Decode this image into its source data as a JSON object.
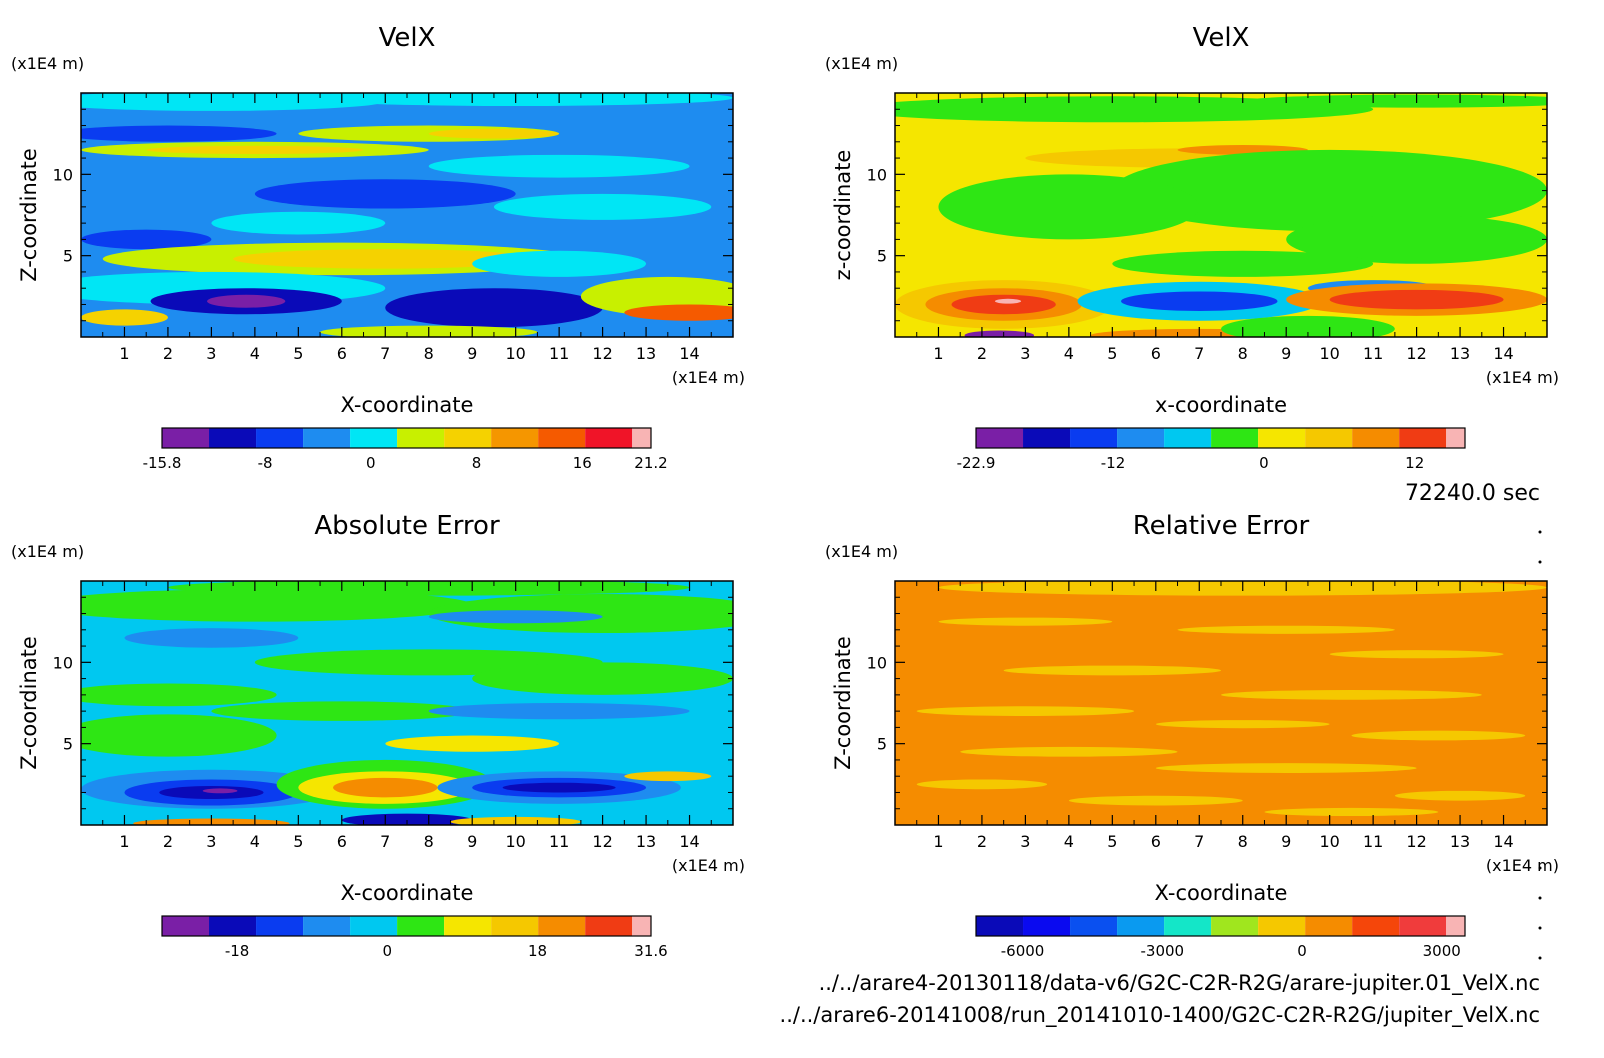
{
  "chart_data": [
    {
      "type": "heatmap",
      "title": "VelX",
      "xlabel": "X-coordinate",
      "ylabel": "Z-coordinate",
      "x_unit": "(x1E4 m)",
      "y_unit": "(x1E4 m)",
      "xlim": [
        0,
        15
      ],
      "ylim": [
        0,
        15
      ],
      "x_ticks": [
        "1",
        "2",
        "3",
        "4",
        "5",
        "6",
        "7",
        "8",
        "9",
        "10",
        "11",
        "12",
        "13",
        "14"
      ],
      "y_ticks": [
        "5",
        "10"
      ],
      "colorbar": {
        "range": [
          -15.8,
          21.2
        ],
        "labels": [
          {
            "text": "-15.8",
            "value": -15.8
          },
          {
            "text": "-8",
            "value": -8
          },
          {
            "text": "0",
            "value": 0
          },
          {
            "text": "8",
            "value": 8
          },
          {
            "text": "16",
            "value": 16
          },
          {
            "text": "21.2",
            "value": 21.2
          }
        ],
        "colors": [
          "#7a1fa6",
          "#0a0ab8",
          "#0a3cf0",
          "#1e8cf0",
          "#00e6f5",
          "#c8f000",
          "#f5d200",
          "#f59600",
          "#f55a00",
          "#f01428",
          "#f8b4b4"
        ]
      },
      "field": {
        "background": 3,
        "blobs": [
          {
            "x": 3,
            "z": 14.5,
            "rx": 4,
            "rz": 0.6,
            "c": 4
          },
          {
            "x": 10,
            "z": 14.7,
            "rx": 5,
            "rz": 0.5,
            "c": 4
          },
          {
            "x": 2,
            "z": 12.5,
            "rx": 2.5,
            "rz": 0.5,
            "c": 2
          },
          {
            "x": 8,
            "z": 12.5,
            "rx": 3,
            "rz": 0.5,
            "c": 5
          },
          {
            "x": 9.5,
            "z": 12.5,
            "rx": 1.5,
            "rz": 0.3,
            "c": 6
          },
          {
            "x": 4,
            "z": 11.5,
            "rx": 4,
            "rz": 0.5,
            "c": 5
          },
          {
            "x": 4,
            "z": 11.5,
            "rx": 2.5,
            "rz": 0.25,
            "c": 6
          },
          {
            "x": 11,
            "z": 10.5,
            "rx": 3,
            "rz": 0.7,
            "c": 4
          },
          {
            "x": 7,
            "z": 8.8,
            "rx": 3,
            "rz": 0.9,
            "c": 2
          },
          {
            "x": 5,
            "z": 7,
            "rx": 2,
            "rz": 0.7,
            "c": 4
          },
          {
            "x": 12,
            "z": 8,
            "rx": 2.5,
            "rz": 0.8,
            "c": 4
          },
          {
            "x": 1.5,
            "z": 6,
            "rx": 1.5,
            "rz": 0.6,
            "c": 2
          },
          {
            "x": 6,
            "z": 4.8,
            "rx": 5.5,
            "rz": 1,
            "c": 5
          },
          {
            "x": 7,
            "z": 4.8,
            "rx": 3.5,
            "rz": 0.6,
            "c": 6
          },
          {
            "x": 11,
            "z": 4.5,
            "rx": 2,
            "rz": 0.8,
            "c": 4
          },
          {
            "x": 3,
            "z": 3,
            "rx": 4,
            "rz": 1,
            "c": 4
          },
          {
            "x": 3.8,
            "z": 2.2,
            "rx": 2.2,
            "rz": 0.8,
            "c": 1
          },
          {
            "x": 3.8,
            "z": 2.2,
            "rx": 0.9,
            "rz": 0.4,
            "c": 0
          },
          {
            "x": 9.5,
            "z": 1.8,
            "rx": 2.5,
            "rz": 1.2,
            "c": 1
          },
          {
            "x": 13.5,
            "z": 2.5,
            "rx": 2,
            "rz": 1.2,
            "c": 5
          },
          {
            "x": 14,
            "z": 1.5,
            "rx": 1.5,
            "rz": 0.5,
            "c": 8
          },
          {
            "x": 8,
            "z": 0.3,
            "rx": 2.5,
            "rz": 0.4,
            "c": 5
          },
          {
            "x": 1,
            "z": 1.2,
            "rx": 1,
            "rz": 0.5,
            "c": 6
          }
        ]
      }
    },
    {
      "type": "heatmap",
      "title": "VelX",
      "xlabel": "x-coordinate",
      "ylabel": "z-coordinate",
      "x_unit": "(x1E4 m)",
      "y_unit": "(x1E4 m)",
      "xlim": [
        0,
        15
      ],
      "ylim": [
        0,
        15
      ],
      "x_ticks": [
        "1",
        "2",
        "3",
        "4",
        "5",
        "6",
        "7",
        "8",
        "9",
        "10",
        "11",
        "12",
        "13",
        "14"
      ],
      "y_ticks": [
        "5",
        "10"
      ],
      "colorbar": {
        "range": [
          -22.9,
          16
        ],
        "labels": [
          {
            "text": "-22.9",
            "value": -22.9
          },
          {
            "text": "-12",
            "value": -12
          },
          {
            "text": "0",
            "value": 0
          },
          {
            "text": "12",
            "value": 12
          }
        ],
        "colors": [
          "#7a1fa6",
          "#0a0ab8",
          "#0a3cf0",
          "#1e8cf0",
          "#00c8f0",
          "#2ee614",
          "#f5e600",
          "#f5c800",
          "#f58c00",
          "#f03c14",
          "#f8b4b4"
        ]
      },
      "field": {
        "background": 6,
        "blobs": [
          {
            "x": 5,
            "z": 14,
            "rx": 6,
            "rz": 0.8,
            "c": 5
          },
          {
            "x": 12,
            "z": 14.5,
            "rx": 4,
            "rz": 0.4,
            "c": 5
          },
          {
            "x": 7,
            "z": 11,
            "rx": 4,
            "rz": 0.6,
            "c": 7
          },
          {
            "x": 8,
            "z": 11.5,
            "rx": 1.5,
            "rz": 0.3,
            "c": 8
          },
          {
            "x": 10,
            "z": 9,
            "rx": 5,
            "rz": 2.5,
            "c": 5
          },
          {
            "x": 4,
            "z": 8,
            "rx": 3,
            "rz": 2,
            "c": 5
          },
          {
            "x": 12,
            "z": 6,
            "rx": 3,
            "rz": 1.5,
            "c": 5
          },
          {
            "x": 8,
            "z": 4.5,
            "rx": 3,
            "rz": 0.8,
            "c": 5
          },
          {
            "x": 11,
            "z": 3,
            "rx": 1.5,
            "rz": 0.5,
            "c": 3
          },
          {
            "x": 2.5,
            "z": 2,
            "rx": 2.5,
            "rz": 1.5,
            "c": 7
          },
          {
            "x": 2.5,
            "z": 2,
            "rx": 1.8,
            "rz": 1,
            "c": 8
          },
          {
            "x": 2.5,
            "z": 2,
            "rx": 1.2,
            "rz": 0.6,
            "c": 9
          },
          {
            "x": 2.6,
            "z": 2.2,
            "rx": 0.3,
            "rz": 0.15,
            "c": 10
          },
          {
            "x": 2.4,
            "z": 0.1,
            "rx": 0.8,
            "rz": 0.3,
            "c": 0
          },
          {
            "x": 7,
            "z": 2.2,
            "rx": 2.8,
            "rz": 1.2,
            "c": 4
          },
          {
            "x": 7,
            "z": 2.2,
            "rx": 1.8,
            "rz": 0.6,
            "c": 2
          },
          {
            "x": 7,
            "z": 0.1,
            "rx": 2.5,
            "rz": 0.4,
            "c": 8
          },
          {
            "x": 12,
            "z": 2.3,
            "rx": 3,
            "rz": 1,
            "c": 8
          },
          {
            "x": 12,
            "z": 2.3,
            "rx": 2,
            "rz": 0.6,
            "c": 9
          },
          {
            "x": 9.5,
            "z": 0.5,
            "rx": 2,
            "rz": 0.8,
            "c": 5
          }
        ]
      }
    },
    {
      "type": "heatmap",
      "title": "Absolute Error",
      "xlabel": "X-coordinate",
      "ylabel": "Z-coordinate",
      "x_unit": "(x1E4 m)",
      "y_unit": "(x1E4 m)",
      "xlim": [
        0,
        15
      ],
      "ylim": [
        0,
        15
      ],
      "x_ticks": [
        "1",
        "2",
        "3",
        "4",
        "5",
        "6",
        "7",
        "8",
        "9",
        "10",
        "11",
        "12",
        "13",
        "14"
      ],
      "y_ticks": [
        "5",
        "10"
      ],
      "colorbar": {
        "range": [
          -27,
          31.6
        ],
        "labels": [
          {
            "text": "-18",
            "value": -18
          },
          {
            "text": "0",
            "value": 0
          },
          {
            "text": "18",
            "value": 18
          },
          {
            "text": "31.6",
            "value": 31.6
          }
        ],
        "colors": [
          "#7a1fa6",
          "#0a0ab8",
          "#0a3cf0",
          "#1e8cf0",
          "#00c8f0",
          "#2ee614",
          "#f5e600",
          "#f5c800",
          "#f58c00",
          "#f03c14",
          "#f8b4b4"
        ]
      },
      "field": {
        "background": 4,
        "blobs": [
          {
            "x": 4,
            "z": 13.5,
            "rx": 5,
            "rz": 1,
            "c": 5
          },
          {
            "x": 12,
            "z": 13,
            "rx": 4,
            "rz": 1.2,
            "c": 5
          },
          {
            "x": 8,
            "z": 14.6,
            "rx": 6,
            "rz": 0.5,
            "c": 5
          },
          {
            "x": 10,
            "z": 12.8,
            "rx": 2,
            "rz": 0.4,
            "c": 3
          },
          {
            "x": 3,
            "z": 11.5,
            "rx": 2,
            "rz": 0.6,
            "c": 3
          },
          {
            "x": 8,
            "z": 10,
            "rx": 4,
            "rz": 0.8,
            "c": 5
          },
          {
            "x": 12,
            "z": 9,
            "rx": 3,
            "rz": 1,
            "c": 5
          },
          {
            "x": 2,
            "z": 8,
            "rx": 2.5,
            "rz": 0.7,
            "c": 5
          },
          {
            "x": 6,
            "z": 7,
            "rx": 3,
            "rz": 0.6,
            "c": 5
          },
          {
            "x": 11,
            "z": 7,
            "rx": 3,
            "rz": 0.5,
            "c": 3
          },
          {
            "x": 2,
            "z": 5.5,
            "rx": 2.5,
            "rz": 1.3,
            "c": 5
          },
          {
            "x": 9,
            "z": 5,
            "rx": 2,
            "rz": 0.5,
            "c": 6
          },
          {
            "x": 3,
            "z": 2.2,
            "rx": 3,
            "rz": 1.2,
            "c": 3
          },
          {
            "x": 3,
            "z": 2,
            "rx": 2,
            "rz": 0.8,
            "c": 2
          },
          {
            "x": 3,
            "z": 2,
            "rx": 1.2,
            "rz": 0.4,
            "c": 1
          },
          {
            "x": 3.2,
            "z": 2.1,
            "rx": 0.4,
            "rz": 0.15,
            "c": 0
          },
          {
            "x": 3,
            "z": 0.1,
            "rx": 1.8,
            "rz": 0.3,
            "c": 8
          },
          {
            "x": 7,
            "z": 2.5,
            "rx": 2.5,
            "rz": 1.5,
            "c": 5
          },
          {
            "x": 7,
            "z": 2.3,
            "rx": 2,
            "rz": 1,
            "c": 6
          },
          {
            "x": 7,
            "z": 2.3,
            "rx": 1.2,
            "rz": 0.6,
            "c": 8
          },
          {
            "x": 7.5,
            "z": 0.3,
            "rx": 1.5,
            "rz": 0.4,
            "c": 1
          },
          {
            "x": 11,
            "z": 2.3,
            "rx": 2.8,
            "rz": 1,
            "c": 3
          },
          {
            "x": 11,
            "z": 2.3,
            "rx": 2,
            "rz": 0.6,
            "c": 2
          },
          {
            "x": 11,
            "z": 2.3,
            "rx": 1.3,
            "rz": 0.3,
            "c": 1
          },
          {
            "x": 13.5,
            "z": 3,
            "rx": 1,
            "rz": 0.3,
            "c": 7
          },
          {
            "x": 10,
            "z": 0.2,
            "rx": 1.5,
            "rz": 0.3,
            "c": 7
          }
        ]
      }
    },
    {
      "type": "heatmap",
      "title": "Relative Error",
      "xlabel": "X-coordinate",
      "ylabel": "Z-coordinate",
      "x_unit": "(x1E4 m)",
      "y_unit": "(x1E4 m)",
      "xlim": [
        0,
        15
      ],
      "ylim": [
        0,
        15
      ],
      "x_ticks": [
        "1",
        "2",
        "3",
        "4",
        "5",
        "6",
        "7",
        "8",
        "9",
        "10",
        "11",
        "12",
        "13",
        "14"
      ],
      "y_ticks": [
        "5",
        "10"
      ],
      "colorbar": {
        "range": [
          -7000,
          3500
        ],
        "labels": [
          {
            "text": "-6000",
            "value": -6000
          },
          {
            "text": "-3000",
            "value": -3000
          },
          {
            "text": "0",
            "value": 0
          },
          {
            "text": "3000",
            "value": 3000
          }
        ],
        "colors": [
          "#0a0ab8",
          "#0a0af0",
          "#0a50f0",
          "#0a9af0",
          "#14e6c8",
          "#a0e61e",
          "#f5c800",
          "#f58c00",
          "#f5460a",
          "#f03c3c",
          "#f8b4b4"
        ]
      },
      "field": {
        "background": 7,
        "blobs": [
          {
            "x": 8,
            "z": 14.6,
            "rx": 7,
            "rz": 0.5,
            "c": 6
          },
          {
            "x": 3,
            "z": 12.5,
            "rx": 2,
            "rz": 0.25,
            "c": 6
          },
          {
            "x": 9,
            "z": 12,
            "rx": 2.5,
            "rz": 0.25,
            "c": 6
          },
          {
            "x": 12,
            "z": 10.5,
            "rx": 2,
            "rz": 0.25,
            "c": 6
          },
          {
            "x": 5,
            "z": 9.5,
            "rx": 2.5,
            "rz": 0.3,
            "c": 6
          },
          {
            "x": 10.5,
            "z": 8,
            "rx": 3,
            "rz": 0.3,
            "c": 6
          },
          {
            "x": 3,
            "z": 7,
            "rx": 2.5,
            "rz": 0.3,
            "c": 6
          },
          {
            "x": 8,
            "z": 6.2,
            "rx": 2,
            "rz": 0.25,
            "c": 6
          },
          {
            "x": 12.5,
            "z": 5.5,
            "rx": 2,
            "rz": 0.3,
            "c": 6
          },
          {
            "x": 4,
            "z": 4.5,
            "rx": 2.5,
            "rz": 0.3,
            "c": 6
          },
          {
            "x": 9,
            "z": 3.5,
            "rx": 3,
            "rz": 0.3,
            "c": 6
          },
          {
            "x": 2,
            "z": 2.5,
            "rx": 1.5,
            "rz": 0.3,
            "c": 6
          },
          {
            "x": 13,
            "z": 1.8,
            "rx": 1.5,
            "rz": 0.3,
            "c": 6
          },
          {
            "x": 6,
            "z": 1.5,
            "rx": 2,
            "rz": 0.3,
            "c": 6
          },
          {
            "x": 10.5,
            "z": 0.8,
            "rx": 2,
            "rz": 0.25,
            "c": 6
          }
        ]
      }
    }
  ],
  "time_label": "72240.0 sec",
  "file_paths": [
    "../../arare4-20130118/data-v6/G2C-C2R-R2G/arare-jupiter.01_VelX.nc",
    "../../arare6-20141008/run_20141010-1400/G2C-C2R-R2G/jupiter_VelX.nc"
  ]
}
